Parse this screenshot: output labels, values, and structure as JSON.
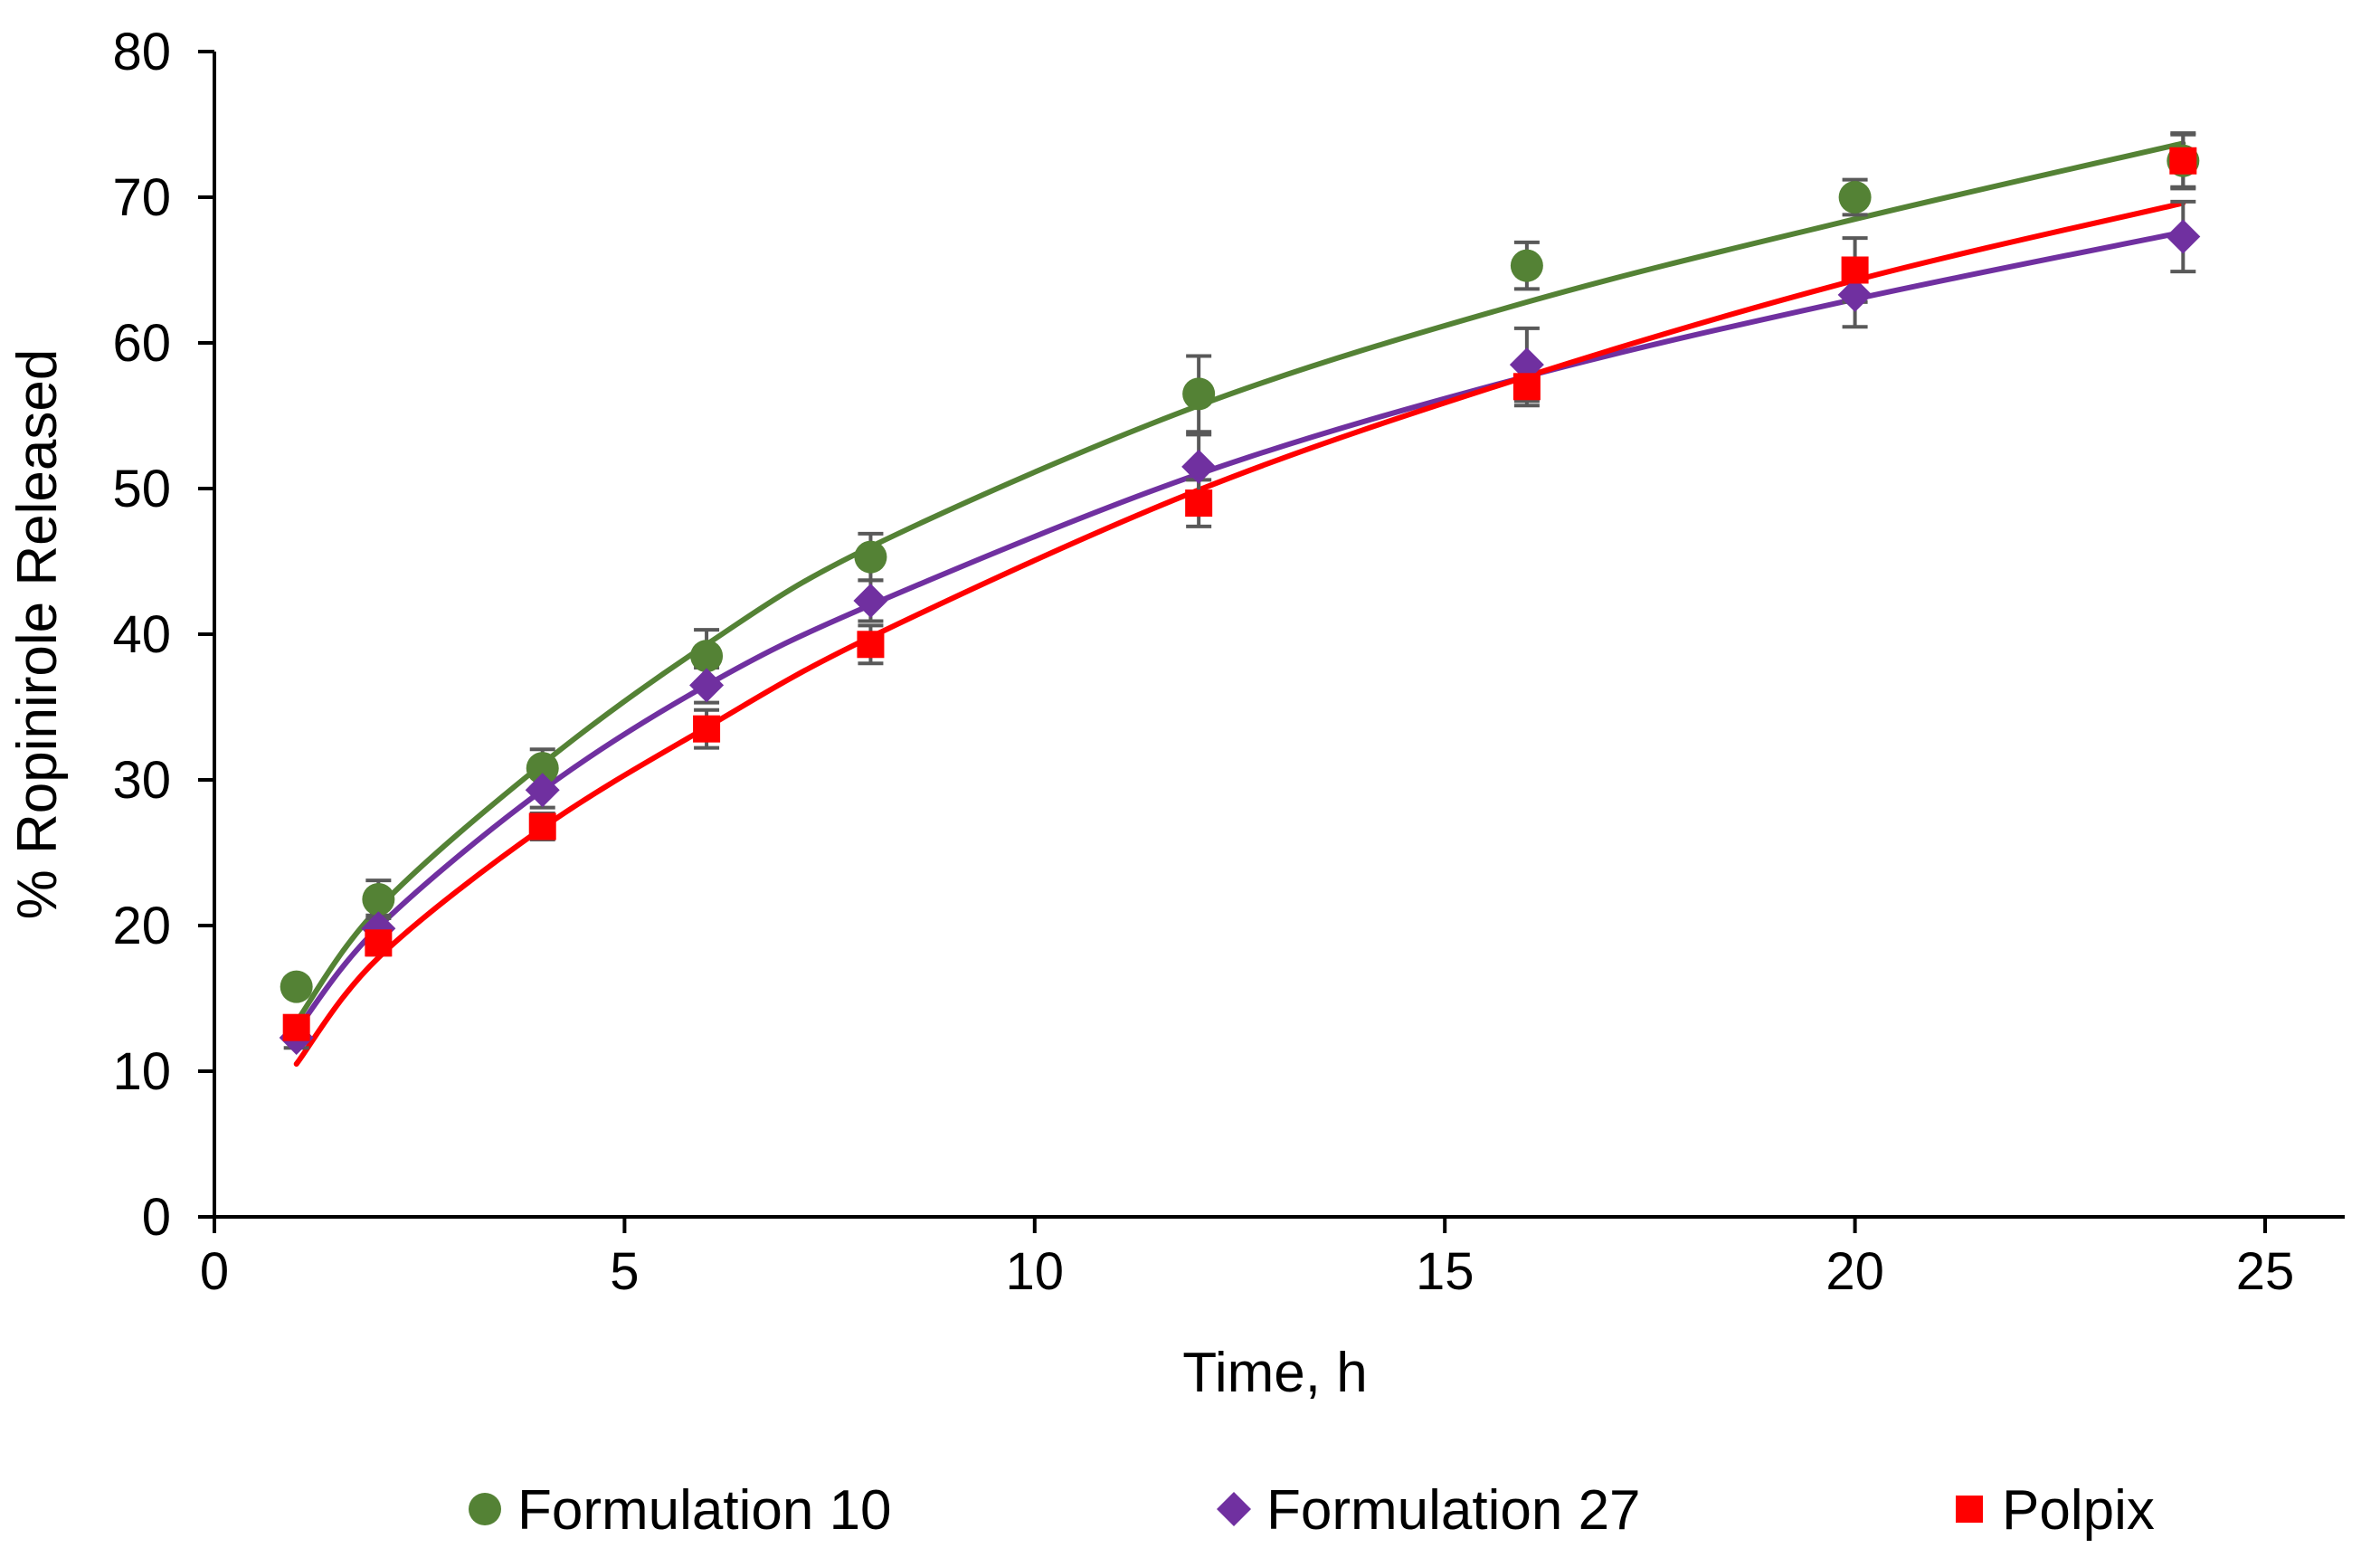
{
  "chart_data": {
    "type": "scatter",
    "title": "",
    "xlabel": "Time, h",
    "ylabel": "% Ropinirole Released",
    "xlim": [
      0,
      26
    ],
    "ylim": [
      0,
      80
    ],
    "x_ticks": [
      0,
      5,
      10,
      15,
      20,
      25
    ],
    "y_ticks": [
      0,
      10,
      20,
      30,
      40,
      50,
      60,
      70,
      80
    ],
    "grid": false,
    "legend_position": "bottom",
    "series": [
      {
        "name": "Formulation 10",
        "marker": "circle",
        "color": "#548235",
        "x": [
          1,
          2,
          4,
          6,
          8,
          12,
          16,
          20,
          24
        ],
        "y": [
          15.8,
          21.8,
          30.8,
          38.5,
          45.3,
          56.5,
          65.3,
          70.0,
          72.5
        ],
        "error": [
          0.6,
          1.3,
          1.3,
          1.8,
          1.6,
          2.6,
          1.6,
          1.2,
          1.8
        ],
        "fit_curve": [
          [
            1,
            13.4
          ],
          [
            2,
            21.2
          ],
          [
            4,
            31.1
          ],
          [
            6,
            39.3
          ],
          [
            8,
            46.0
          ],
          [
            12,
            55.7
          ],
          [
            16,
            62.8
          ],
          [
            20,
            68.5
          ],
          [
            24,
            73.7
          ]
        ]
      },
      {
        "name": "Formulation 27",
        "marker": "diamond",
        "color": "#7030a0",
        "x": [
          1,
          2,
          4,
          6,
          8,
          12,
          16,
          20,
          24
        ],
        "y": [
          12.3,
          19.8,
          29.3,
          36.5,
          42.3,
          51.5,
          58.5,
          63.3,
          67.3
        ],
        "error": [
          0.7,
          0.9,
          1.2,
          1.2,
          1.4,
          2.2,
          2.5,
          2.2,
          2.4
        ],
        "fit_curve": [
          [
            1,
            12.8
          ],
          [
            2,
            19.9
          ],
          [
            4,
            29.3
          ],
          [
            6,
            36.5
          ],
          [
            8,
            42.0
          ],
          [
            12,
            51.0
          ],
          [
            16,
            57.7
          ],
          [
            20,
            63.0
          ],
          [
            24,
            67.6
          ]
        ]
      },
      {
        "name": "Polpix",
        "marker": "square",
        "color": "#ff0000",
        "x": [
          1,
          2,
          4,
          6,
          8,
          12,
          16,
          20,
          24
        ],
        "y": [
          13.0,
          18.8,
          26.8,
          33.5,
          39.3,
          49.0,
          57.0,
          65.0,
          72.5
        ],
        "error": [
          0.5,
          0.8,
          0.9,
          1.3,
          1.3,
          1.6,
          1.3,
          2.2,
          1.9
        ],
        "fit_curve": [
          [
            1,
            10.5
          ],
          [
            2,
            17.8
          ],
          [
            4,
            26.7
          ],
          [
            6,
            33.6
          ],
          [
            8,
            39.8
          ],
          [
            12,
            49.9
          ],
          [
            16,
            57.7
          ],
          [
            20,
            64.3
          ],
          [
            24,
            69.6
          ]
        ]
      }
    ]
  }
}
